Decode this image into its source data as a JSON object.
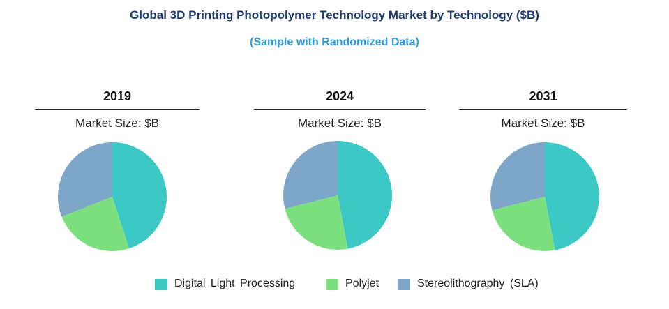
{
  "title": "Global 3D Printing Photopolymer Technology Market by Technology ($B)",
  "subtitle": "(Sample with Randomized Data)",
  "colors": {
    "title": "#1f3a6e",
    "subtitle": "#2e9fd8",
    "dlp": "#3cc8c4",
    "polyjet": "#7de07f",
    "sla": "#7ea6c9"
  },
  "chart_data": [
    {
      "type": "pie",
      "title": "2019",
      "subtitle": "Market Size: $B",
      "series": [
        {
          "name": "Digital Light Processing",
          "value": 45
        },
        {
          "name": "Polyjet",
          "value": 24
        },
        {
          "name": "Stereolithography (SLA)",
          "value": 31
        }
      ]
    },
    {
      "type": "pie",
      "title": "2024",
      "subtitle": "Market Size: $B",
      "series": [
        {
          "name": "Digital Light Processing",
          "value": 47
        },
        {
          "name": "Polyjet",
          "value": 24
        },
        {
          "name": "Stereolithography (SLA)",
          "value": 29
        }
      ]
    },
    {
      "type": "pie",
      "title": "2031",
      "subtitle": "Market Size: $B",
      "series": [
        {
          "name": "Digital Light Processing",
          "value": 47
        },
        {
          "name": "Polyjet",
          "value": 24
        },
        {
          "name": "Stereolithography (SLA)",
          "value": 29
        }
      ]
    }
  ],
  "legend": [
    {
      "label": "Digital Light Processing",
      "color": "#3cc8c4"
    },
    {
      "label": "Polyjet",
      "color": "#7de07f"
    },
    {
      "label": "Stereolithography (SLA)",
      "color": "#7ea6c9"
    }
  ]
}
